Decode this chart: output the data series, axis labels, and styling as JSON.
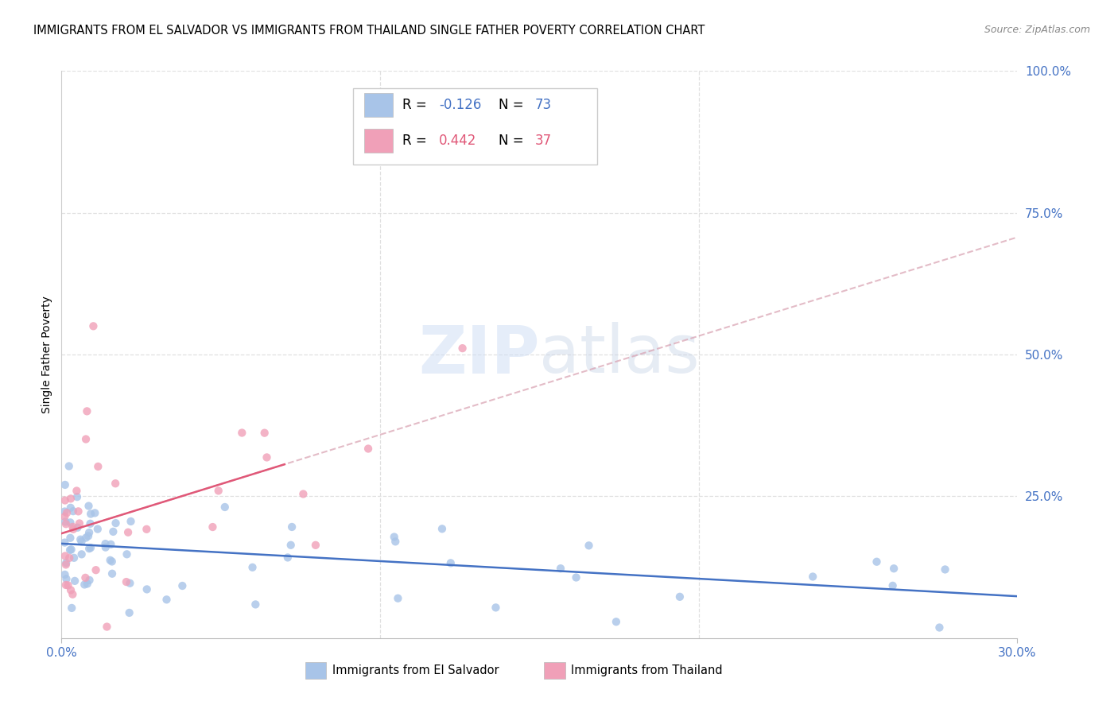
{
  "title": "IMMIGRANTS FROM EL SALVADOR VS IMMIGRANTS FROM THAILAND SINGLE FATHER POVERTY CORRELATION CHART",
  "source": "Source: ZipAtlas.com",
  "ylabel": "Single Father Poverty",
  "right_yticks": [
    "100.0%",
    "75.0%",
    "50.0%",
    "25.0%"
  ],
  "right_ytick_vals": [
    1.0,
    0.75,
    0.5,
    0.25
  ],
  "watermark_zip": "ZIP",
  "watermark_atlas": "atlas",
  "legend_blue_r": "-0.126",
  "legend_blue_n": "73",
  "legend_pink_r": "0.442",
  "legend_pink_n": "37",
  "legend_blue_label": "Immigrants from El Salvador",
  "legend_pink_label": "Immigrants from Thailand",
  "blue_color": "#a8c4e8",
  "pink_color": "#f0a0b8",
  "line_blue_color": "#4472c4",
  "line_pink_color": "#e05878",
  "axis_color": "#4472c4",
  "grid_color": "#e0e0e0",
  "xlim": [
    0.0,
    0.3
  ],
  "ylim": [
    0.0,
    1.0
  ],
  "xlabel_ticks": [
    0.0,
    0.3
  ],
  "xlabel_labels": [
    "0.0%",
    "30.0%"
  ],
  "xtick_minor": [
    0.1,
    0.2
  ],
  "note_seed": 123
}
